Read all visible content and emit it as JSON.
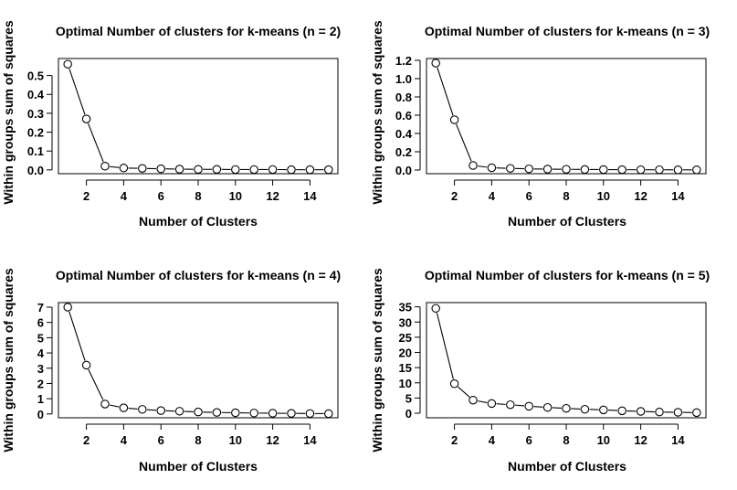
{
  "chart_data": [
    {
      "type": "line",
      "title": "Optimal Number of clusters for k-means (n = 2)",
      "xlabel": "Number of Clusters",
      "ylabel": "Within groups sum of squares",
      "x": [
        1,
        2,
        3,
        4,
        5,
        6,
        7,
        8,
        9,
        10,
        11,
        12,
        13,
        14,
        15
      ],
      "series": [
        {
          "values": [
            0.56,
            0.27,
            0.02,
            0.01,
            0.008,
            0.006,
            0.004,
            0.003,
            0.003,
            0.002,
            0.002,
            0.002,
            0.001,
            0.001,
            0.001
          ]
        }
      ],
      "xticks": [
        2,
        4,
        6,
        8,
        10,
        12,
        14
      ],
      "yticks": [
        0.0,
        0.1,
        0.2,
        0.3,
        0.4,
        0.5
      ],
      "ytick_labels": [
        "0.0",
        "0.1",
        "0.2",
        "0.3",
        "0.4",
        "0.5"
      ],
      "xlim": [
        0.5,
        15.5
      ],
      "ylim": [
        -0.02,
        0.59
      ],
      "grid": false,
      "marker": "open-circle"
    },
    {
      "type": "line",
      "title": "Optimal Number of clusters for k-means (n = 3)",
      "xlabel": "Number of Clusters",
      "ylabel": "Within groups sum of squares",
      "x": [
        1,
        2,
        3,
        4,
        5,
        6,
        7,
        8,
        9,
        10,
        11,
        12,
        13,
        14,
        15
      ],
      "series": [
        {
          "values": [
            1.17,
            0.55,
            0.05,
            0.025,
            0.018,
            0.013,
            0.01,
            0.008,
            0.006,
            0.005,
            0.004,
            0.003,
            0.003,
            0.002,
            0.002
          ]
        }
      ],
      "xticks": [
        2,
        4,
        6,
        8,
        10,
        12,
        14
      ],
      "yticks": [
        0.0,
        0.2,
        0.4,
        0.6,
        0.8,
        1.0,
        1.2
      ],
      "ytick_labels": [
        "0.0",
        "0.2",
        "0.4",
        "0.6",
        "0.8",
        "1.0",
        "1.2"
      ],
      "xlim": [
        0.5,
        15.5
      ],
      "ylim": [
        -0.04,
        1.22
      ],
      "grid": false,
      "marker": "open-circle"
    },
    {
      "type": "line",
      "title": "Optimal Number of clusters for k-means (n = 4)",
      "xlabel": "Number of Clusters",
      "ylabel": "Within groups sum of squares",
      "x": [
        1,
        2,
        3,
        4,
        5,
        6,
        7,
        8,
        9,
        10,
        11,
        12,
        13,
        14,
        15
      ],
      "series": [
        {
          "values": [
            7.0,
            3.2,
            0.65,
            0.4,
            0.3,
            0.22,
            0.18,
            0.13,
            0.1,
            0.08,
            0.06,
            0.05,
            0.04,
            0.03,
            0.02
          ]
        }
      ],
      "xticks": [
        2,
        4,
        6,
        8,
        10,
        12,
        14
      ],
      "yticks": [
        0,
        1,
        2,
        3,
        4,
        5,
        6,
        7
      ],
      "ytick_labels": [
        "0",
        "1",
        "2",
        "3",
        "4",
        "5",
        "6",
        "7"
      ],
      "xlim": [
        0.5,
        15.5
      ],
      "ylim": [
        -0.25,
        7.3
      ],
      "grid": false,
      "marker": "open-circle"
    },
    {
      "type": "line",
      "title": "Optimal Number of clusters for k-means (n = 5)",
      "xlabel": "Number of Clusters",
      "ylabel": "Within groups sum of squares",
      "x": [
        1,
        2,
        3,
        4,
        5,
        6,
        7,
        8,
        9,
        10,
        11,
        12,
        13,
        14,
        15
      ],
      "series": [
        {
          "values": [
            34.5,
            9.7,
            4.3,
            3.2,
            2.8,
            2.3,
            1.9,
            1.6,
            1.3,
            1.1,
            0.8,
            0.6,
            0.4,
            0.3,
            0.2
          ]
        }
      ],
      "xticks": [
        2,
        4,
        6,
        8,
        10,
        12,
        14
      ],
      "yticks": [
        0,
        5,
        10,
        15,
        20,
        25,
        30,
        35
      ],
      "ytick_labels": [
        "0",
        "5",
        "10",
        "15",
        "20",
        "25",
        "30",
        "35"
      ],
      "xlim": [
        0.5,
        15.5
      ],
      "ylim": [
        -1.5,
        36.4
      ],
      "grid": false,
      "marker": "open-circle"
    }
  ]
}
